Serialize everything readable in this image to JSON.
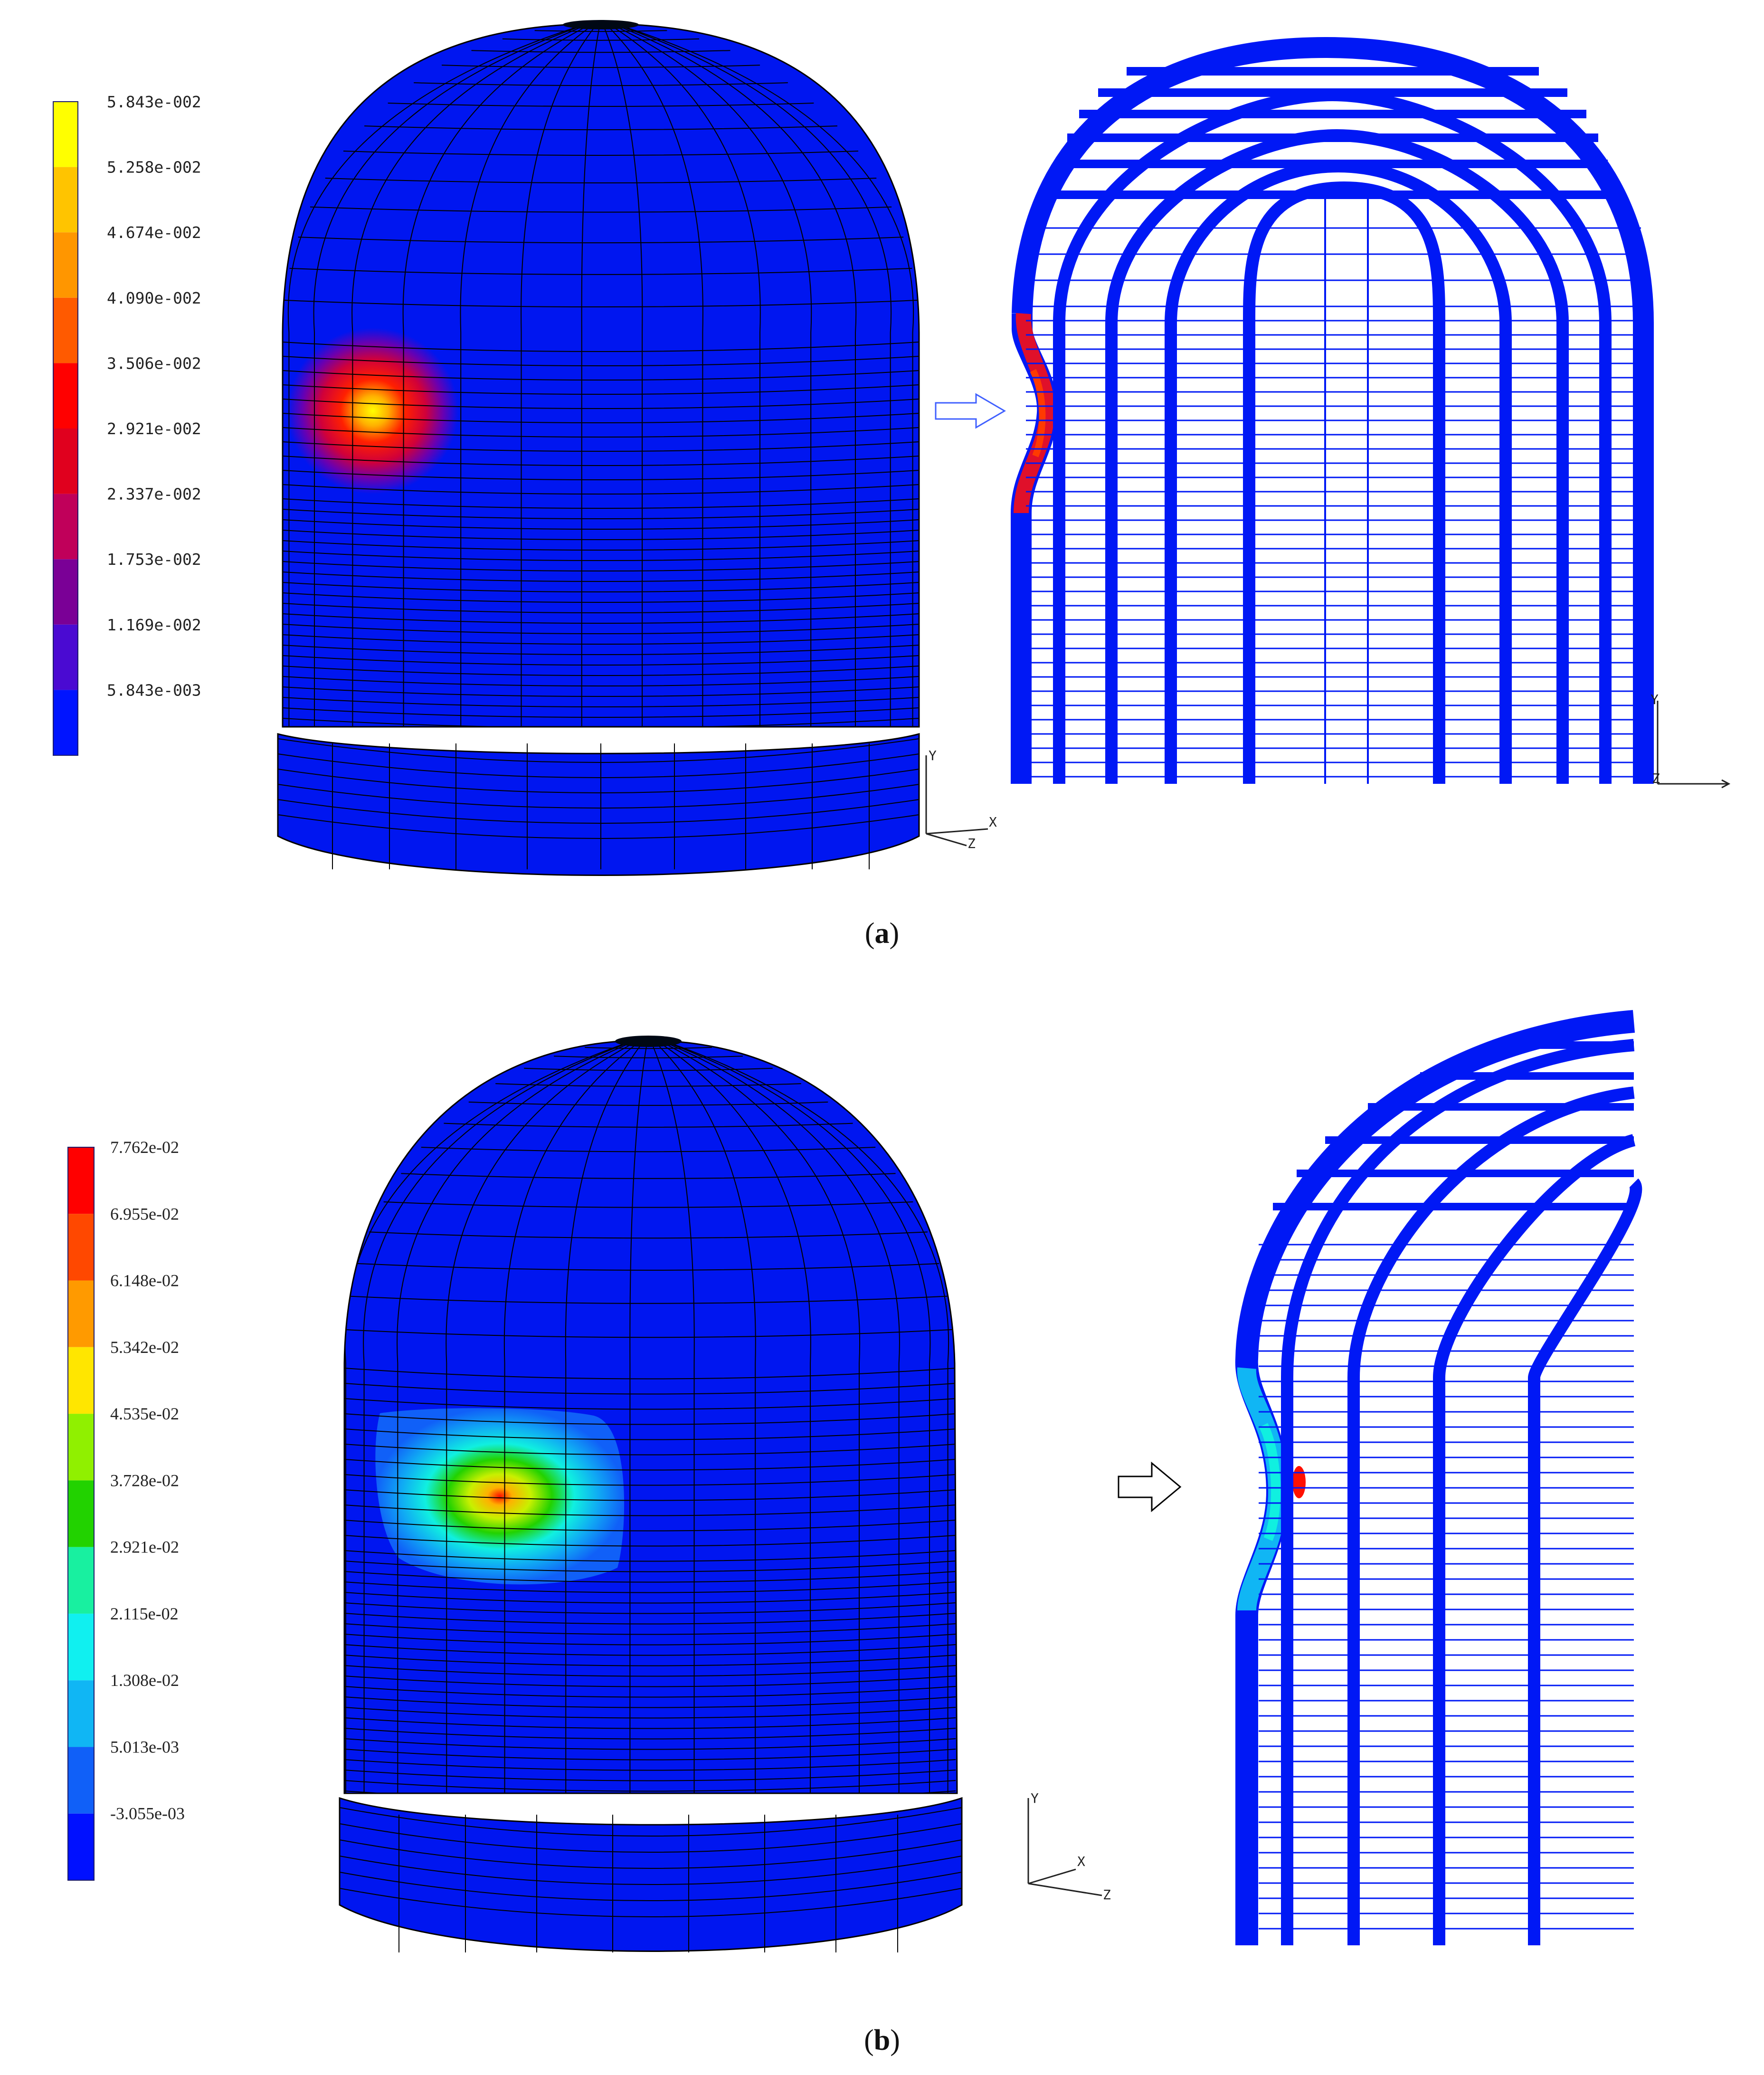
{
  "panels": [
    {
      "caption_label": "a",
      "legend": {
        "values": [
          "5.843e-002",
          "5.258e-002",
          "4.674e-002",
          "4.090e-002",
          "3.506e-002",
          "2.921e-002",
          "2.337e-002",
          "1.753e-002",
          "1.169e-002",
          "5.843e-003"
        ],
        "colors": [
          "#ffff00",
          "#ffc400",
          "#ff9600",
          "#ff5a00",
          "#ff0000",
          "#e0001e",
          "#c0005a",
          "#7a0096",
          "#4a0ad2",
          "#0014ff"
        ]
      },
      "axes_3d": [
        "Y",
        "X",
        "Z"
      ],
      "axes_2d": [
        "Y",
        "Z"
      ]
    },
    {
      "caption_label": "b",
      "legend": {
        "values": [
          "7.762e-02",
          "6.955e-02",
          "6.148e-02",
          "5.342e-02",
          "4.535e-02",
          "3.728e-02",
          "2.921e-02",
          "2.115e-02",
          "1.308e-02",
          "5.013e-03",
          "-3.055e-03"
        ],
        "colors": [
          "#ff0000",
          "#ff4800",
          "#ff9a00",
          "#ffe600",
          "#90f000",
          "#22d200",
          "#18f0a0",
          "#10f0f0",
          "#10b6f4",
          "#1060f8",
          "#0010ff"
        ]
      },
      "axes_3d": [
        "Y",
        "X",
        "Z"
      ]
    }
  ],
  "colors": {
    "shell": "#0016f0",
    "mesh_line": "#000000",
    "frame": "#0018f5",
    "arrow_a": "#4060ff",
    "arrow_b": "#000000"
  }
}
